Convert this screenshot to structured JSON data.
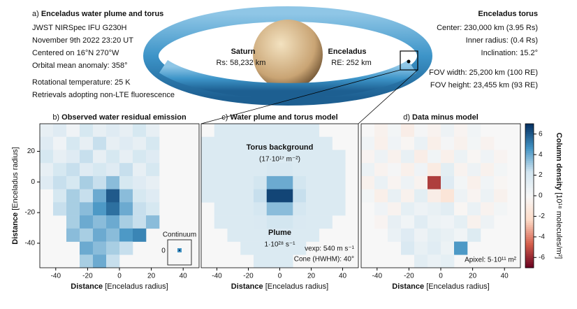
{
  "header_left": {
    "label": "a)",
    "title": "Enceladus water plume and torus",
    "lines": [
      "JWST NIRSpec IFU G230H",
      "November 9th 2022 23:20 UT",
      "Centered on 16°N 270°W",
      "Orbital mean anomaly: 358°"
    ],
    "lines2": [
      "Rotational temperature: 25 K",
      "Retrievals adopting non-LTE fluorescence"
    ]
  },
  "header_right": {
    "title": "Enceladus torus",
    "lines": [
      "Center: 230,000 km (3.95 Rs)",
      "Inner radius: (0.4 Rs)",
      "Inclination: 15.2°"
    ],
    "lines2": [
      "FOV width: 25,200 km (100 RE)",
      "FOV height: 23,455 km (93 RE)"
    ]
  },
  "torus": {
    "saturn": "Saturn",
    "saturn_radius": "Rs: 58,232 km",
    "enceladus": "Enceladus",
    "enceladus_radius": "RE: 252 km"
  },
  "axis_label": {
    "bold": "Distance",
    "rest": " [Enceladus radius]"
  },
  "colorbar": {
    "label_bold": "Column density",
    "label_rest": " [10¹⁸ molecules/m²]",
    "clim": [
      -7,
      7
    ],
    "ticks": [
      -6,
      -4,
      -2,
      0,
      2,
      4,
      6
    ],
    "colors": [
      "#67001f",
      "#d6604d",
      "#fddbc7",
      "#f7f7f7",
      "#d1e5f0",
      "#4393c3",
      "#053061"
    ]
  },
  "chart_data": [
    {
      "type": "heatmap",
      "label": "b)",
      "title": "Observed water residual emission",
      "xlim": [
        -50,
        50
      ],
      "ylim": [
        -56,
        38
      ],
      "xticks": [
        -40,
        -20,
        0,
        20,
        40
      ],
      "yticks": [
        20,
        0,
        -20,
        -40
      ],
      "annotations": {
        "continuum": "Continuum",
        "continuum_tick": 0
      },
      "values": [
        [
          1,
          1.5,
          0.5,
          2,
          1,
          1.5,
          1,
          2,
          1,
          null,
          null,
          null
        ],
        [
          1.5,
          0.5,
          2,
          1,
          2.5,
          1,
          1.5,
          1,
          2,
          null,
          null,
          null
        ],
        [
          2,
          1,
          1.5,
          2.5,
          1,
          2,
          1,
          2,
          1.5,
          null,
          null,
          null
        ],
        [
          1,
          2,
          2.5,
          1.5,
          2,
          1.5,
          2.5,
          1,
          2,
          null,
          null,
          null
        ],
        [
          1.5,
          2.5,
          2,
          3,
          2.5,
          3.5,
          2,
          1.5,
          1,
          null,
          null,
          null
        ],
        [
          null,
          2,
          3,
          2.5,
          4,
          6,
          3.5,
          2,
          1.5,
          null,
          null,
          null
        ],
        [
          null,
          2.5,
          3,
          3.5,
          4.5,
          5.5,
          4,
          2.5,
          2,
          null,
          null,
          null
        ],
        [
          null,
          null,
          3,
          4,
          3.5,
          4,
          3,
          2.5,
          3.5,
          null,
          null,
          null
        ],
        [
          null,
          null,
          3.5,
          3,
          4,
          3.5,
          4.5,
          5,
          null,
          null,
          null,
          null
        ],
        [
          null,
          null,
          null,
          4,
          3.5,
          3,
          2.5,
          null,
          null,
          null,
          null,
          null
        ],
        [
          null,
          null,
          null,
          3,
          4,
          2.5,
          null,
          null,
          null,
          null,
          null,
          null
        ]
      ]
    },
    {
      "type": "heatmap",
      "label": "c)",
      "title": "Water plume and torus model",
      "xlim": [
        -50,
        50
      ],
      "ylim": [
        -56,
        38
      ],
      "xticks": [
        -40,
        -20,
        0,
        20,
        40
      ],
      "annotations": {
        "torus": "Torus background",
        "torus_value": "(17·10¹⁷ m⁻²)",
        "plume": "Plume",
        "plume_value": "1·10²⁸ s⁻¹",
        "vexp": "vexp: 540 m s⁻¹",
        "cone": "Cone (HWHM): 40°"
      },
      "values": [
        [
          null,
          1.7,
          1.7,
          1.7,
          1.7,
          1.7,
          1.7,
          1.7,
          1.7,
          null,
          null,
          null
        ],
        [
          1.7,
          1.7,
          1.7,
          1.7,
          1.7,
          1.7,
          1.7,
          1.7,
          1.7,
          1.7,
          null,
          null
        ],
        [
          1.7,
          1.7,
          1.7,
          1.7,
          1.7,
          1.7,
          1.7,
          1.7,
          1.7,
          1.7,
          1.7,
          null
        ],
        [
          1.7,
          1.7,
          1.7,
          1.7,
          1.7,
          1.9,
          1.9,
          1.7,
          1.7,
          1.7,
          1.7,
          null
        ],
        [
          1.7,
          1.7,
          1.7,
          1.7,
          2.2,
          4,
          4,
          2.2,
          1.7,
          1.7,
          1.7,
          null
        ],
        [
          1.7,
          1.7,
          1.7,
          1.7,
          2.5,
          6.5,
          6.5,
          2.5,
          1.7,
          1.7,
          1.7,
          null
        ],
        [
          null,
          1.7,
          1.7,
          1.7,
          2.1,
          3.5,
          3.5,
          2.1,
          1.7,
          1.7,
          1.7,
          null
        ],
        [
          null,
          1.7,
          1.7,
          1.7,
          1.8,
          2.2,
          2.2,
          1.8,
          1.7,
          1.7,
          null,
          null
        ],
        [
          null,
          null,
          1.7,
          1.7,
          1.7,
          1.8,
          1.8,
          1.7,
          1.7,
          null,
          null,
          null
        ],
        [
          null,
          null,
          null,
          1.7,
          1.7,
          1.7,
          1.7,
          1.7,
          null,
          null,
          null,
          null
        ],
        [
          null,
          null,
          null,
          null,
          1.7,
          1.7,
          1.7,
          null,
          null,
          null,
          null,
          null
        ]
      ]
    },
    {
      "type": "heatmap",
      "label": "d)",
      "title": "Data minus model",
      "xlim": [
        -50,
        50
      ],
      "ylim": [
        -56,
        38
      ],
      "xticks": [
        -40,
        -20,
        0,
        20,
        40
      ],
      "annotations": {
        "apixel": "Apixel: 5·10¹¹ m²"
      },
      "values": [
        [
          null,
          -0.5,
          0.3,
          -0.8,
          0.2,
          -0.4,
          0.6,
          -0.3,
          0.4,
          null,
          null,
          null
        ],
        [
          0.4,
          -0.6,
          0.5,
          -0.2,
          0.8,
          -0.7,
          0.2,
          -0.5,
          0.3,
          -0.4,
          null,
          null
        ],
        [
          -0.3,
          0.6,
          -0.5,
          0.9,
          -0.8,
          0.4,
          -0.6,
          0.7,
          -0.2,
          0.5,
          -0.3,
          null
        ],
        [
          0.7,
          -0.4,
          0.2,
          -0.6,
          0.5,
          -1,
          1.2,
          -0.4,
          0.6,
          -0.5,
          0.3,
          null
        ],
        [
          -0.5,
          0.8,
          -0.3,
          0.6,
          -0.4,
          -5.5,
          1.5,
          0.3,
          -0.6,
          0.4,
          -0.2,
          null
        ],
        [
          0.3,
          -0.7,
          0.9,
          -0.5,
          1.2,
          -0.8,
          -1.5,
          0.6,
          -0.3,
          0.7,
          -0.5,
          null
        ],
        [
          null,
          0.5,
          -0.4,
          1.1,
          0.6,
          0.9,
          1.3,
          -0.2,
          0.8,
          -0.4,
          0.3,
          null
        ],
        [
          null,
          -0.3,
          1,
          0.4,
          1.4,
          0.7,
          0.5,
          1.1,
          -0.5,
          0.6,
          null,
          null
        ],
        [
          null,
          null,
          0.8,
          1.5,
          0.6,
          1.2,
          0.9,
          0.4,
          1.6,
          null,
          null,
          null
        ],
        [
          null,
          null,
          null,
          1.8,
          0.9,
          1.4,
          0.7,
          4.5,
          null,
          null,
          null,
          null
        ],
        [
          null,
          null,
          null,
          null,
          1.3,
          0.8,
          1.1,
          null,
          null,
          null,
          null,
          null
        ]
      ]
    }
  ]
}
